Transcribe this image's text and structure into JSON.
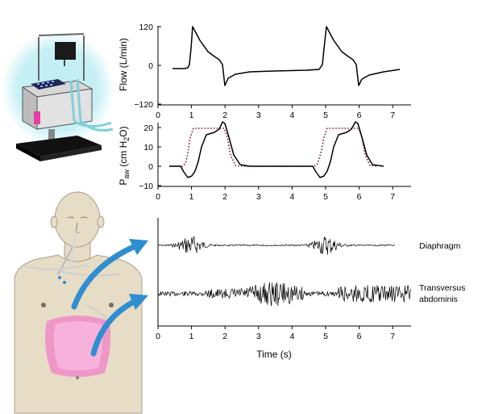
{
  "figure": {
    "flow_panel": {
      "ylabel": "Flow (L/min)",
      "yticks": [
        "120",
        "0",
        "−120"
      ],
      "xticks": [
        "0",
        "1",
        "2",
        "3",
        "4",
        "5",
        "6",
        "7"
      ]
    },
    "paw_panel": {
      "ylabel_main": "P",
      "ylabel_sub": "aw",
      "ylabel_rest": " (cm H",
      "ylabel_sub2": "2",
      "ylabel_end": "O)",
      "yticks": [
        "20",
        "10",
        "0",
        "−10"
      ],
      "xticks": [
        "0",
        "1",
        "2",
        "3",
        "4",
        "5",
        "6",
        "7"
      ]
    },
    "emg_panel": {
      "xlabel": "Time (s)",
      "xticks": [
        "0",
        "1",
        "2",
        "3",
        "4",
        "5",
        "6",
        "7"
      ],
      "traces": [
        "Diaphragm",
        "Transversus",
        "abdominis"
      ]
    }
  },
  "colors": {
    "airway_pressure_dotted": "#7a1b45",
    "arrow_blue": "#2f8ed0",
    "abdominal_muscle_pink": "#f08ac8",
    "ventilator_glow": "#bfeef4",
    "skin": "#e7dcc6"
  }
}
